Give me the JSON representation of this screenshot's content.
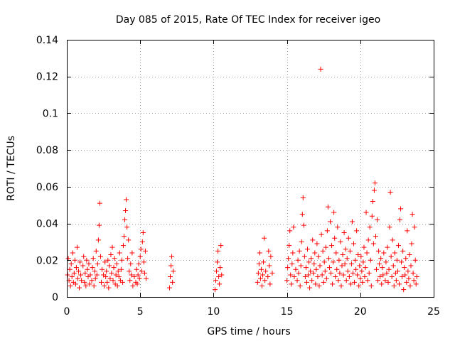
{
  "chart_data": {
    "type": "scatter",
    "title": "Day 085 of 2015, Rate Of TEC Index for receiver igeo",
    "xlabel": "GPS time / hours",
    "ylabel": "ROTI / TECUs",
    "xlim": [
      0,
      25
    ],
    "ylim": [
      0,
      0.14
    ],
    "xticks": [
      0,
      5,
      10,
      15,
      20,
      25
    ],
    "xtick_labels": [
      "0",
      "5",
      "10",
      "15",
      "20",
      "25"
    ],
    "yticks": [
      0,
      0.02,
      0.04,
      0.06,
      0.08,
      0.1,
      0.12,
      0.14
    ],
    "ytick_labels": [
      "0",
      "0.02",
      "0.04",
      "0.06",
      "0.08",
      "0.1",
      "0.12",
      "0.14"
    ],
    "grid": true,
    "marker": "+",
    "series": [
      {
        "name": "ROTI",
        "color": "#ff0000",
        "points": [
          [
            0.05,
            0.012
          ],
          [
            0.1,
            0.021
          ],
          [
            0.15,
            0.009
          ],
          [
            0.2,
            0.015
          ],
          [
            0.25,
            0.006
          ],
          [
            0.3,
            0.018
          ],
          [
            0.35,
            0.011
          ],
          [
            0.4,
            0.024
          ],
          [
            0.45,
            0.008
          ],
          [
            0.5,
            0.013
          ],
          [
            0.55,
            0.02
          ],
          [
            0.6,
            0.007
          ],
          [
            0.65,
            0.016
          ],
          [
            0.7,
            0.027
          ],
          [
            0.75,
            0.01
          ],
          [
            0.8,
            0.014
          ],
          [
            0.85,
            0.005
          ],
          [
            0.9,
            0.019
          ],
          [
            0.95,
            0.012
          ],
          [
            1.0,
            0.009
          ],
          [
            1.1,
            0.017
          ],
          [
            1.15,
            0.022
          ],
          [
            1.2,
            0.008
          ],
          [
            1.25,
            0.013
          ],
          [
            1.3,
            0.006
          ],
          [
            1.35,
            0.02
          ],
          [
            1.4,
            0.015
          ],
          [
            1.45,
            0.011
          ],
          [
            1.5,
            0.018
          ],
          [
            1.55,
            0.007
          ],
          [
            1.6,
            0.012
          ],
          [
            1.7,
            0.009
          ],
          [
            1.75,
            0.016
          ],
          [
            1.8,
            0.021
          ],
          [
            1.85,
            0.006
          ],
          [
            1.9,
            0.014
          ],
          [
            1.95,
            0.01
          ],
          [
            2.0,
            0.025
          ],
          [
            2.05,
            0.012
          ],
          [
            2.1,
            0.018
          ],
          [
            2.15,
            0.031
          ],
          [
            2.2,
            0.039
          ],
          [
            2.25,
            0.051
          ],
          [
            2.3,
            0.022
          ],
          [
            2.35,
            0.008
          ],
          [
            2.4,
            0.015
          ],
          [
            2.5,
            0.012
          ],
          [
            2.55,
            0.006
          ],
          [
            2.6,
            0.019
          ],
          [
            2.65,
            0.011
          ],
          [
            2.7,
            0.014
          ],
          [
            2.75,
            0.008
          ],
          [
            2.8,
            0.02
          ],
          [
            2.85,
            0.005
          ],
          [
            2.9,
            0.017
          ],
          [
            2.95,
            0.01
          ],
          [
            3.0,
            0.023
          ],
          [
            3.05,
            0.013
          ],
          [
            3.1,
            0.027
          ],
          [
            3.15,
            0.009
          ],
          [
            3.2,
            0.016
          ],
          [
            3.25,
            0.021
          ],
          [
            3.3,
            0.007
          ],
          [
            3.35,
            0.012
          ],
          [
            3.4,
            0.018
          ],
          [
            3.45,
            0.006
          ],
          [
            3.5,
            0.014
          ],
          [
            3.55,
            0.011
          ],
          [
            3.6,
            0.024
          ],
          [
            3.65,
            0.009
          ],
          [
            3.7,
            0.015
          ],
          [
            3.75,
            0.02
          ],
          [
            3.8,
            0.008
          ],
          [
            3.85,
            0.028
          ],
          [
            3.9,
            0.033
          ],
          [
            3.95,
            0.042
          ],
          [
            4.0,
            0.047
          ],
          [
            4.05,
            0.053
          ],
          [
            4.1,
            0.038
          ],
          [
            4.15,
            0.021
          ],
          [
            4.2,
            0.031
          ],
          [
            4.25,
            0.014
          ],
          [
            4.3,
            0.009
          ],
          [
            4.35,
            0.018
          ],
          [
            4.4,
            0.012
          ],
          [
            4.45,
            0.024
          ],
          [
            4.5,
            0.006
          ],
          [
            4.6,
            0.011
          ],
          [
            4.7,
            0.008
          ],
          [
            4.75,
            0.015
          ],
          [
            4.8,
            0.007
          ],
          [
            4.85,
            0.012
          ],
          [
            4.9,
            0.018
          ],
          [
            4.95,
            0.01
          ],
          [
            5.0,
            0.022
          ],
          [
            5.05,
            0.026
          ],
          [
            5.1,
            0.014
          ],
          [
            5.15,
            0.03
          ],
          [
            5.2,
            0.035
          ],
          [
            5.25,
            0.019
          ],
          [
            5.3,
            0.013
          ],
          [
            5.35,
            0.025
          ],
          [
            5.4,
            0.01
          ],
          [
            7.0,
            0.005
          ],
          [
            7.05,
            0.011
          ],
          [
            7.1,
            0.017
          ],
          [
            7.15,
            0.022
          ],
          [
            7.2,
            0.008
          ],
          [
            7.25,
            0.014
          ],
          [
            10.1,
            0.004
          ],
          [
            10.15,
            0.009
          ],
          [
            10.2,
            0.014
          ],
          [
            10.25,
            0.019
          ],
          [
            10.3,
            0.025
          ],
          [
            10.35,
            0.011
          ],
          [
            10.4,
            0.007
          ],
          [
            10.45,
            0.016
          ],
          [
            10.5,
            0.028
          ],
          [
            10.55,
            0.012
          ],
          [
            13.0,
            0.008
          ],
          [
            13.05,
            0.013
          ],
          [
            13.1,
            0.018
          ],
          [
            13.15,
            0.024
          ],
          [
            13.2,
            0.01
          ],
          [
            13.25,
            0.015
          ],
          [
            13.3,
            0.006
          ],
          [
            13.35,
            0.012
          ],
          [
            13.4,
            0.019
          ],
          [
            13.45,
            0.032
          ],
          [
            13.5,
            0.009
          ],
          [
            13.55,
            0.014
          ],
          [
            13.7,
            0.011
          ],
          [
            13.75,
            0.025
          ],
          [
            13.8,
            0.017
          ],
          [
            13.85,
            0.007
          ],
          [
            13.9,
            0.022
          ],
          [
            14.0,
            0.013
          ],
          [
            15.0,
            0.009
          ],
          [
            15.05,
            0.016
          ],
          [
            15.1,
            0.021
          ],
          [
            15.15,
            0.028
          ],
          [
            15.2,
            0.036
          ],
          [
            15.25,
            0.012
          ],
          [
            15.3,
            0.007
          ],
          [
            15.35,
            0.018
          ],
          [
            15.4,
            0.024
          ],
          [
            15.45,
            0.038
          ],
          [
            15.5,
            0.011
          ],
          [
            15.6,
            0.015
          ],
          [
            15.7,
            0.009
          ],
          [
            15.75,
            0.02
          ],
          [
            15.8,
            0.013
          ],
          [
            15.85,
            0.025
          ],
          [
            15.9,
            0.006
          ],
          [
            15.95,
            0.017
          ],
          [
            16.0,
            0.03
          ],
          [
            16.05,
            0.045
          ],
          [
            16.1,
            0.054
          ],
          [
            16.15,
            0.039
          ],
          [
            16.2,
            0.022
          ],
          [
            16.25,
            0.011
          ],
          [
            16.3,
            0.016
          ],
          [
            16.35,
            0.008
          ],
          [
            16.4,
            0.026
          ],
          [
            16.45,
            0.012
          ],
          [
            16.5,
            0.019
          ],
          [
            16.55,
            0.005
          ],
          [
            16.6,
            0.014
          ],
          [
            16.65,
            0.021
          ],
          [
            16.7,
            0.009
          ],
          [
            16.75,
            0.031
          ],
          [
            16.8,
            0.013
          ],
          [
            16.85,
            0.018
          ],
          [
            16.9,
            0.024
          ],
          [
            16.95,
            0.007
          ],
          [
            17.0,
            0.015
          ],
          [
            17.05,
            0.029
          ],
          [
            17.1,
            0.011
          ],
          [
            17.15,
            0.022
          ],
          [
            17.2,
            0.006
          ],
          [
            17.25,
            0.017
          ],
          [
            17.3,
            0.124
          ],
          [
            17.35,
            0.034
          ],
          [
            17.4,
            0.012
          ],
          [
            17.45,
            0.025
          ],
          [
            17.5,
            0.008
          ],
          [
            17.55,
            0.019
          ],
          [
            17.6,
            0.014
          ],
          [
            17.65,
            0.027
          ],
          [
            17.7,
            0.01
          ],
          [
            17.75,
            0.036
          ],
          [
            17.8,
            0.049
          ],
          [
            17.85,
            0.021
          ],
          [
            17.9,
            0.016
          ],
          [
            17.95,
            0.041
          ],
          [
            18.0,
            0.013
          ],
          [
            18.05,
            0.028
          ],
          [
            18.1,
            0.007
          ],
          [
            18.15,
            0.019
          ],
          [
            18.2,
            0.046
          ],
          [
            18.25,
            0.032
          ],
          [
            18.3,
            0.011
          ],
          [
            18.35,
            0.024
          ],
          [
            18.4,
            0.015
          ],
          [
            18.45,
            0.038
          ],
          [
            18.5,
            0.009
          ],
          [
            18.55,
            0.02
          ],
          [
            18.6,
            0.013
          ],
          [
            18.65,
            0.03
          ],
          [
            18.7,
            0.006
          ],
          [
            18.75,
            0.017
          ],
          [
            18.8,
            0.023
          ],
          [
            18.85,
            0.012
          ],
          [
            18.9,
            0.035
          ],
          [
            18.95,
            0.018
          ],
          [
            19.0,
            0.026
          ],
          [
            19.05,
            0.009
          ],
          [
            19.1,
            0.021
          ],
          [
            19.15,
            0.014
          ],
          [
            19.2,
            0.032
          ],
          [
            19.25,
            0.011
          ],
          [
            19.3,
            0.025
          ],
          [
            19.35,
            0.007
          ],
          [
            19.4,
            0.018
          ],
          [
            19.45,
            0.041
          ],
          [
            19.5,
            0.013
          ],
          [
            19.55,
            0.029
          ],
          [
            19.6,
            0.008
          ],
          [
            19.65,
            0.02
          ],
          [
            19.7,
            0.015
          ],
          [
            19.75,
            0.036
          ],
          [
            19.8,
            0.012
          ],
          [
            19.85,
            0.023
          ],
          [
            19.9,
            0.006
          ],
          [
            19.95,
            0.017
          ],
          [
            20.0,
            0.01
          ],
          [
            20.05,
            0.022
          ],
          [
            20.1,
            0.014
          ],
          [
            20.15,
            0.008
          ],
          [
            20.2,
            0.019
          ],
          [
            20.25,
            0.027
          ],
          [
            20.3,
            0.011
          ],
          [
            20.35,
            0.016
          ],
          [
            20.4,
            0.046
          ],
          [
            20.45,
            0.024
          ],
          [
            20.5,
            0.009
          ],
          [
            20.55,
            0.031
          ],
          [
            20.6,
            0.013
          ],
          [
            20.65,
            0.038
          ],
          [
            20.7,
            0.02
          ],
          [
            20.75,
            0.006
          ],
          [
            20.8,
            0.044
          ],
          [
            20.85,
            0.052
          ],
          [
            20.9,
            0.029
          ],
          [
            20.95,
            0.058
          ],
          [
            21.0,
            0.062
          ],
          [
            21.05,
            0.033
          ],
          [
            21.1,
            0.015
          ],
          [
            21.15,
            0.042
          ],
          [
            21.2,
            0.009
          ],
          [
            21.25,
            0.025
          ],
          [
            21.3,
            0.018
          ],
          [
            21.35,
            0.011
          ],
          [
            21.4,
            0.021
          ],
          [
            21.45,
            0.007
          ],
          [
            21.5,
            0.016
          ],
          [
            21.55,
            0.012
          ],
          [
            21.6,
            0.024
          ],
          [
            21.7,
            0.009
          ],
          [
            21.75,
            0.019
          ],
          [
            21.8,
            0.013
          ],
          [
            21.85,
            0.027
          ],
          [
            21.9,
            0.008
          ],
          [
            21.95,
            0.015
          ],
          [
            22.0,
            0.038
          ],
          [
            22.05,
            0.057
          ],
          [
            22.1,
            0.022
          ],
          [
            22.15,
            0.011
          ],
          [
            22.2,
            0.031
          ],
          [
            22.25,
            0.017
          ],
          [
            22.3,
            0.006
          ],
          [
            22.35,
            0.024
          ],
          [
            22.4,
            0.013
          ],
          [
            22.45,
            0.009
          ],
          [
            22.5,
            0.02
          ],
          [
            22.55,
            0.014
          ],
          [
            22.6,
            0.028
          ],
          [
            22.65,
            0.007
          ],
          [
            22.7,
            0.042
          ],
          [
            22.75,
            0.048
          ],
          [
            22.8,
            0.019
          ],
          [
            22.85,
            0.011
          ],
          [
            22.9,
            0.025
          ],
          [
            22.95,
            0.004
          ],
          [
            23.0,
            0.016
          ],
          [
            23.05,
            0.012
          ],
          [
            23.1,
            0.021
          ],
          [
            23.15,
            0.008
          ],
          [
            23.2,
            0.036
          ],
          [
            23.25,
            0.014
          ],
          [
            23.3,
            0.01
          ],
          [
            23.35,
            0.023
          ],
          [
            23.4,
            0.006
          ],
          [
            23.45,
            0.017
          ],
          [
            23.5,
            0.029
          ],
          [
            23.55,
            0.045
          ],
          [
            23.6,
            0.013
          ],
          [
            23.65,
            0.009
          ],
          [
            23.7,
            0.038
          ],
          [
            23.75,
            0.02
          ],
          [
            23.8,
            0.007
          ],
          [
            23.85,
            0.011
          ]
        ]
      }
    ]
  }
}
